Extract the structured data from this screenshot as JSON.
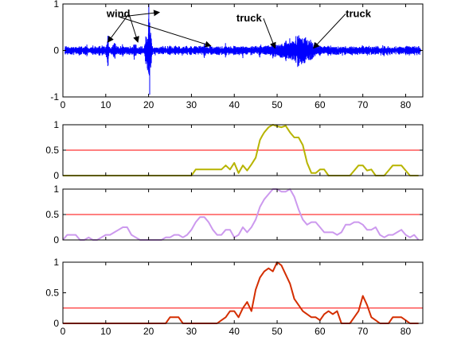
{
  "chart_data": [
    {
      "type": "line",
      "title": "",
      "xlabel": "",
      "ylabel": "",
      "xlim": [
        0,
        84
      ],
      "ylim": [
        -1,
        1
      ],
      "x_ticks": [
        "0",
        "10",
        "20",
        "30",
        "40",
        "50",
        "60",
        "70",
        "80"
      ],
      "y_ticks": [
        "-1",
        "0",
        "1"
      ],
      "grid": false,
      "series": [
        {
          "color": "#0000ff",
          "description": "waveform",
          "bursts": [
            {
              "x": 2,
              "amp": 0.12
            },
            {
              "x": 5.5,
              "amp": 0.18
            },
            {
              "x": 8.5,
              "amp": 0.16
            },
            {
              "x": 10.5,
              "amp": 0.4
            },
            {
              "x": 12,
              "amp": 0.35
            },
            {
              "x": 14,
              "amp": 0.22
            },
            {
              "x": 16.8,
              "amp": 0.3
            },
            {
              "x": 19.5,
              "amp": 0.5
            },
            {
              "x": 20.0,
              "amp": 0.9
            },
            {
              "x": 20.3,
              "amp": 0.75
            },
            {
              "x": 25,
              "amp": 0.18
            },
            {
              "x": 29,
              "amp": 0.15
            },
            {
              "x": 33,
              "amp": 0.22
            },
            {
              "x": 38,
              "amp": 0.2
            },
            {
              "x": 42,
              "amp": 0.18
            },
            {
              "x": 46,
              "amp": 0.22
            },
            {
              "x": 49,
              "amp": 0.25
            },
            {
              "x": 52,
              "amp": 0.35
            },
            {
              "x": 55,
              "amp": 0.4
            },
            {
              "x": 57,
              "amp": 0.3
            },
            {
              "x": 62,
              "amp": 0.18
            },
            {
              "x": 66,
              "amp": 0.15
            },
            {
              "x": 70,
              "amp": 0.18
            },
            {
              "x": 75,
              "amp": 0.15
            },
            {
              "x": 80,
              "amp": 0.15
            }
          ],
          "background_amp": 0.08,
          "envelope": [
            {
              "x": 45,
              "amp": 0.08
            },
            {
              "x": 50,
              "amp": 0.15
            },
            {
              "x": 53,
              "amp": 0.28
            },
            {
              "x": 55,
              "amp": 0.38
            },
            {
              "x": 57,
              "amp": 0.3
            },
            {
              "x": 59,
              "amp": 0.15
            },
            {
              "x": 62,
              "amp": 0.08
            }
          ]
        }
      ],
      "annotations": [
        {
          "text": "wind",
          "tx": 10.2,
          "ty": 0.72,
          "arrows": [
            [
              10.5,
              0.18
            ],
            [
              17.5,
              0.18
            ]
          ]
        },
        {
          "text": "wind",
          "tx": 13.2,
          "ty": 0.72,
          "hidden": true,
          "arrows": [
            [
              22.5,
              0.82
            ],
            [
              34.5,
              0.1
            ]
          ]
        },
        {
          "text": "truck",
          "tx": 40.5,
          "ty": 0.62,
          "arrows": [
            [
              49.5,
              0.05
            ]
          ]
        },
        {
          "text": "truck",
          "tx": 66,
          "ty": 0.72,
          "arrows": [
            [
              58.5,
              0.05
            ]
          ]
        }
      ]
    },
    {
      "type": "line",
      "title": "",
      "xlim": [
        0,
        84
      ],
      "ylim": [
        0,
        1
      ],
      "y_ticks": [
        "0",
        "0.5",
        "1"
      ],
      "threshold": {
        "y": 0.5,
        "color": "#ff0000"
      },
      "series": [
        {
          "color": "#b7b400",
          "x": [
            0,
            30,
            31,
            32,
            33,
            34,
            35,
            36,
            37,
            38,
            39,
            40,
            41,
            42,
            43,
            44,
            45,
            46,
            46.5,
            47,
            48,
            49,
            50,
            51,
            52,
            53,
            54,
            55,
            56,
            57,
            58,
            59,
            60,
            61,
            62,
            63,
            64,
            65,
            66,
            67,
            68,
            69,
            70,
            71,
            72,
            73,
            74,
            75,
            76,
            77,
            78,
            79,
            80,
            81,
            82,
            83
          ],
          "y": [
            0,
            0,
            0.12,
            0.12,
            0.12,
            0.12,
            0.12,
            0.12,
            0.12,
            0.2,
            0.12,
            0.25,
            0.05,
            0.2,
            0.1,
            0.22,
            0.35,
            0.7,
            0.78,
            0.85,
            0.95,
            1.0,
            0.97,
            0.95,
            0.98,
            0.85,
            0.75,
            0.75,
            0.6,
            0.25,
            0.05,
            0.05,
            0.12,
            0.12,
            0,
            0,
            0,
            0,
            0,
            0,
            0.1,
            0.2,
            0.2,
            0.1,
            0.12,
            0,
            0,
            0,
            0.1,
            0.2,
            0.2,
            0.2,
            0.1,
            0,
            0,
            0
          ]
        }
      ]
    },
    {
      "type": "line",
      "title": "",
      "xlim": [
        0,
        84
      ],
      "ylim": [
        0,
        1
      ],
      "y_ticks": [
        "0",
        "0.5",
        "1"
      ],
      "threshold": {
        "y": 0.5,
        "color": "#ff0000"
      },
      "series": [
        {
          "color": "#cc99ee",
          "x": [
            0,
            1,
            2,
            3,
            4,
            5,
            6,
            7,
            8,
            9,
            10,
            11,
            12,
            13,
            14,
            15,
            16,
            17,
            18,
            19,
            20,
            21,
            22,
            23,
            24,
            25,
            26,
            27,
            28,
            29,
            30,
            31,
            32,
            33,
            34,
            35,
            36,
            37,
            38,
            39,
            40,
            41,
            42,
            43,
            44,
            45,
            46,
            47,
            48,
            49,
            50,
            51,
            52,
            53,
            54,
            55,
            56,
            57,
            58,
            59,
            60,
            61,
            62,
            63,
            64,
            65,
            66,
            67,
            68,
            69,
            70,
            71,
            72,
            73,
            74,
            75,
            76,
            77,
            78,
            79,
            80,
            81,
            82,
            83
          ],
          "y": [
            0,
            0.1,
            0.1,
            0.1,
            0,
            0,
            0.05,
            0,
            0,
            0.05,
            0.1,
            0.1,
            0.15,
            0.2,
            0.25,
            0.25,
            0.1,
            0.05,
            0,
            0,
            0,
            0,
            0,
            0,
            0.05,
            0.05,
            0.1,
            0.1,
            0.05,
            0.1,
            0.2,
            0.35,
            0.45,
            0.45,
            0.35,
            0.2,
            0.1,
            0.1,
            0.2,
            0.2,
            0.05,
            0.1,
            0.25,
            0.15,
            0.25,
            0.4,
            0.65,
            0.8,
            0.9,
            1.0,
            1.0,
            0.95,
            0.95,
            1.0,
            0.85,
            0.6,
            0.4,
            0.3,
            0.35,
            0.35,
            0.25,
            0.15,
            0.15,
            0.15,
            0.1,
            0.15,
            0.3,
            0.3,
            0.35,
            0.35,
            0.3,
            0.2,
            0.2,
            0.25,
            0.1,
            0.05,
            0.1,
            0.1,
            0.15,
            0.2,
            0.1,
            0.05,
            0.1,
            0
          ]
        }
      ]
    },
    {
      "type": "line",
      "title": "",
      "xlim": [
        0,
        84
      ],
      "ylim": [
        0,
        1
      ],
      "x_ticks": [
        "0",
        "10",
        "20",
        "30",
        "40",
        "50",
        "60",
        "70",
        "80"
      ],
      "y_ticks": [
        "0",
        "0.5",
        "1"
      ],
      "threshold": {
        "y": 0.25,
        "color": "#ff0000"
      },
      "series": [
        {
          "color": "#d42e00",
          "x": [
            0,
            24,
            25,
            26,
            27,
            28,
            29,
            36,
            37,
            38,
            39,
            40,
            41,
            42,
            43,
            44,
            45,
            46,
            47,
            48,
            49,
            50,
            51,
            52,
            53,
            54,
            55,
            56,
            57,
            58,
            59,
            60,
            61,
            62,
            63,
            64,
            65,
            66,
            67,
            68,
            69,
            70,
            71,
            72,
            73,
            74,
            75,
            76,
            77,
            78,
            79,
            80,
            81,
            82,
            83
          ],
          "y": [
            0,
            0,
            0.1,
            0.1,
            0.1,
            0,
            0,
            0,
            0.05,
            0.1,
            0.2,
            0.2,
            0.1,
            0.25,
            0.35,
            0.2,
            0.55,
            0.75,
            0.85,
            0.9,
            0.85,
            1.0,
            0.95,
            0.8,
            0.65,
            0.4,
            0.3,
            0.2,
            0.15,
            0.1,
            0.1,
            0.05,
            0.15,
            0.2,
            0.15,
            0.2,
            0,
            0,
            0,
            0.1,
            0.2,
            0.45,
            0.3,
            0.1,
            0.05,
            0,
            0,
            0,
            0.1,
            0.1,
            0.1,
            0.05,
            0,
            0,
            0
          ]
        }
      ]
    }
  ]
}
